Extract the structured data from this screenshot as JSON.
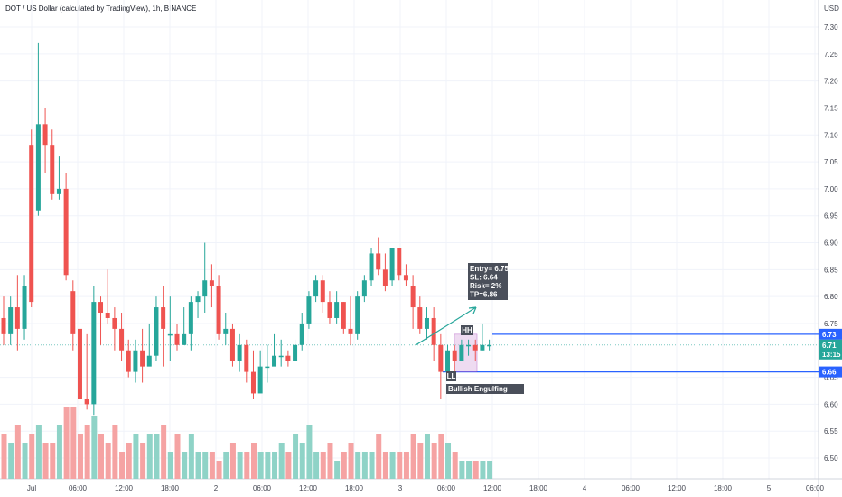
{
  "header": {
    "title": "DOT / US Dollar (calculated by TradingView), 1h, BINANCE"
  },
  "price_axis": {
    "currency": "USD"
  },
  "chart_data": {
    "type": "candlestick",
    "title": "DOT / US Dollar (calculated by TradingView), 1h, BINANCE",
    "ylim": [
      6.46,
      7.34
    ],
    "y_ticks": [
      "7.30",
      "7.25",
      "7.20",
      "7.15",
      "7.10",
      "7.05",
      "7.00",
      "6.95",
      "6.90",
      "6.85",
      "6.80",
      "6.75",
      "6.65",
      "6.60",
      "6.55",
      "6.50"
    ],
    "x_ticks": [
      "Jul",
      "06:00",
      "12:00",
      "18:00",
      "2",
      "06:00",
      "12:00",
      "18:00",
      "3",
      "06:00",
      "12:00",
      "18:00",
      "4",
      "06:00",
      "12:00",
      "18:00",
      "5",
      "06:00"
    ],
    "candles": [
      [
        6.76,
        6.73,
        6.8,
        6.71
      ],
      [
        6.73,
        6.78,
        6.8,
        6.71
      ],
      [
        6.78,
        6.74,
        6.84,
        6.7
      ],
      [
        6.74,
        6.82,
        6.84,
        6.72
      ],
      [
        7.08,
        6.79,
        7.11,
        6.78
      ],
      [
        6.96,
        7.12,
        7.27,
        6.95
      ],
      [
        7.12,
        7.08,
        7.15,
        7.03
      ],
      [
        7.08,
        6.99,
        7.11,
        6.98
      ],
      [
        6.99,
        7.0,
        7.06,
        6.98
      ],
      [
        7.0,
        6.84,
        7.03,
        6.83
      ],
      [
        6.81,
        6.73,
        6.83,
        6.7
      ],
      [
        6.74,
        6.61,
        6.76,
        6.58
      ],
      [
        6.61,
        6.6,
        6.73,
        6.59
      ],
      [
        6.6,
        6.79,
        6.82,
        6.58
      ],
      [
        6.79,
        6.77,
        6.8,
        6.71
      ],
      [
        6.77,
        6.76,
        6.85,
        6.75
      ],
      [
        6.76,
        6.74,
        6.78,
        6.7
      ],
      [
        6.74,
        6.7,
        6.77,
        6.68
      ],
      [
        6.7,
        6.66,
        6.72,
        6.65
      ],
      [
        6.66,
        6.7,
        6.72,
        6.64
      ],
      [
        6.7,
        6.67,
        6.74,
        6.64
      ],
      [
        6.67,
        6.69,
        6.75,
        6.68
      ],
      [
        6.69,
        6.78,
        6.8,
        6.68
      ],
      [
        6.78,
        6.74,
        6.82,
        6.67
      ],
      [
        6.73,
        6.73,
        6.8,
        6.68
      ],
      [
        6.73,
        6.71,
        6.75,
        6.7
      ],
      [
        6.71,
        6.73,
        6.78,
        6.71
      ],
      [
        6.73,
        6.79,
        6.8,
        6.7
      ],
      [
        6.79,
        6.8,
        6.81,
        6.76
      ],
      [
        6.8,
        6.83,
        6.9,
        6.77
      ],
      [
        6.83,
        6.82,
        6.86,
        6.78
      ],
      [
        6.82,
        6.73,
        6.84,
        6.72
      ],
      [
        6.73,
        6.74,
        6.77,
        6.71
      ],
      [
        6.74,
        6.68,
        6.75,
        6.67
      ],
      [
        6.68,
        6.71,
        6.73,
        6.66
      ],
      [
        6.71,
        6.66,
        6.72,
        6.64
      ],
      [
        6.66,
        6.62,
        6.7,
        6.61
      ],
      [
        6.62,
        6.67,
        6.7,
        6.64
      ],
      [
        6.67,
        6.67,
        6.71,
        6.64
      ],
      [
        6.67,
        6.69,
        6.73,
        6.68
      ],
      [
        6.69,
        6.69,
        6.72,
        6.67
      ],
      [
        6.69,
        6.68,
        6.7,
        6.67
      ],
      [
        6.68,
        6.71,
        6.72,
        6.68
      ],
      [
        6.71,
        6.75,
        6.77,
        6.7
      ],
      [
        6.75,
        6.8,
        6.81,
        6.74
      ],
      [
        6.8,
        6.83,
        6.84,
        6.79
      ],
      [
        6.83,
        6.79,
        6.84,
        6.77
      ],
      [
        6.79,
        6.76,
        6.81,
        6.75
      ],
      [
        6.76,
        6.79,
        6.81,
        6.75
      ],
      [
        6.79,
        6.74,
        6.79,
        6.73
      ],
      [
        6.74,
        6.73,
        6.8,
        6.71
      ],
      [
        6.73,
        6.8,
        6.81,
        6.72
      ],
      [
        6.8,
        6.83,
        6.84,
        6.79
      ],
      [
        6.83,
        6.88,
        6.89,
        6.82
      ],
      [
        6.88,
        6.85,
        6.91,
        6.84
      ],
      [
        6.85,
        6.82,
        6.88,
        6.81
      ],
      [
        6.83,
        6.89,
        6.89,
        6.82
      ],
      [
        6.89,
        6.84,
        6.89,
        6.83
      ],
      [
        6.84,
        6.83,
        6.86,
        6.82
      ],
      [
        6.82,
        6.78,
        6.84,
        6.74
      ],
      [
        6.78,
        6.74,
        6.8,
        6.73
      ],
      [
        6.74,
        6.76,
        6.78,
        6.72
      ],
      [
        6.76,
        6.71,
        6.78,
        6.68
      ],
      [
        6.71,
        6.66,
        6.73,
        6.61
      ],
      [
        6.66,
        6.7,
        6.71,
        6.66
      ],
      [
        6.7,
        6.68,
        6.71,
        6.66
      ],
      [
        6.68,
        6.71,
        6.72,
        6.68
      ],
      [
        6.71,
        6.71,
        6.72,
        6.69
      ],
      [
        6.71,
        6.7,
        6.72,
        6.68
      ],
      [
        6.7,
        6.71,
        6.75,
        6.7
      ],
      [
        6.71,
        6.71,
        6.72,
        6.7
      ]
    ],
    "volume": [
      5,
      4,
      6,
      4,
      5,
      6,
      4,
      4,
      6,
      8,
      8,
      5,
      6,
      7,
      5,
      4,
      6,
      3,
      4,
      5,
      4,
      5,
      5,
      6,
      3,
      5,
      3,
      5,
      3,
      3,
      3,
      2,
      3,
      4,
      3,
      3,
      4,
      3,
      3,
      3,
      4,
      3,
      5,
      4,
      6,
      3,
      3,
      4,
      2,
      3,
      4,
      3,
      3,
      3,
      5,
      3,
      3,
      3,
      3,
      5,
      4,
      5,
      4,
      5,
      4,
      3,
      2,
      2,
      2,
      2,
      2
    ],
    "levels": {
      "upper": 6.73,
      "lower": 6.66,
      "current": 6.71
    },
    "price_tags": {
      "upper": "6.73",
      "current": "6.71",
      "countdown": "13:15",
      "lower": "6.66"
    }
  },
  "annotations": {
    "trade_note": [
      "Entry= 6.75",
      "SL: 6.64",
      "Risk= 2%",
      "TP=6.86"
    ],
    "hh_label": "HH",
    "ll_label": "LL",
    "pattern_label": "Bullish Engulfing"
  },
  "colors": {
    "up": "#26a69a",
    "down": "#ef5350",
    "up_volume": "#8fd3c7",
    "down_volume": "#f5a3a3",
    "level_line": "#2962ff",
    "note_bg": "#4a4f5a",
    "grid": "#f0f3fa"
  }
}
